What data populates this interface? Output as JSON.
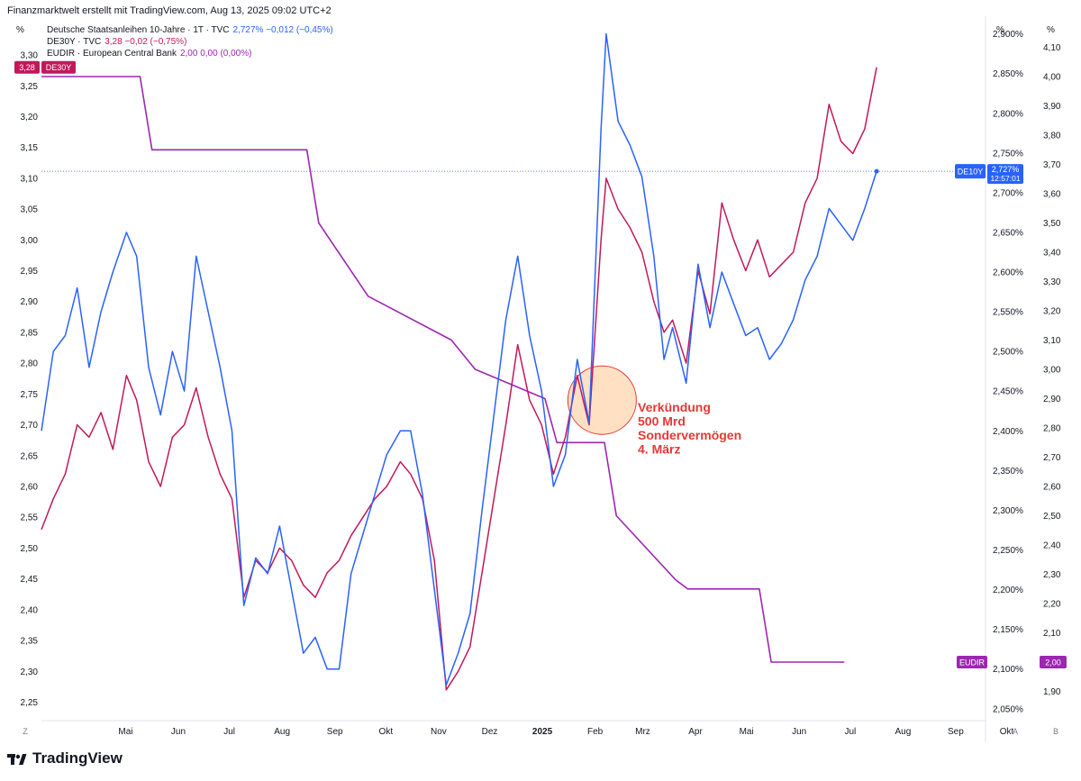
{
  "header": {
    "caption": "Finanzmarktwelt erstellt mit TradingView.com, Aug 13, 2025 09:02 UTC+2"
  },
  "axis_units": {
    "left": "%",
    "right1": "%",
    "right2": "%"
  },
  "legend": [
    {
      "name": "Deutsche Staatsanleihen 10-Jahre · 1T · TVC",
      "values": "2,727%  −0,012 (−0,45%)",
      "color": "#2962ff"
    },
    {
      "name": "DE30Y · TVC",
      "values": "3,28  −0,02 (−0,75%)",
      "color": "#c2185b"
    },
    {
      "name": "EUDIR · European Central Bank",
      "values": "2,00  0,00 (0,00%)",
      "color": "#9c27b0"
    }
  ],
  "price_tags": {
    "de30y": {
      "value": "3,28",
      "label": "DE30Y",
      "color": "#c2185b"
    },
    "de10y": {
      "label": "DE10Y",
      "value": "2,727%",
      "time": "12:57:01",
      "color": "#2962ff"
    },
    "eudir": {
      "label": "EUDIR",
      "value": "2,00",
      "color": "#9c27b0"
    }
  },
  "annotation": {
    "lines": [
      "Verkündung",
      "500 Mrd",
      "Sondervermögen",
      "4. März"
    ],
    "color": "#e53935",
    "circle_fill": "#ffcc99"
  },
  "bottom_letters": {
    "left": "Z",
    "right1": "A",
    "right2": "B"
  },
  "brand": {
    "name": "TradingView"
  },
  "chart_data": {
    "type": "line",
    "x_ticks": [
      "Mai",
      "Jun",
      "Jul",
      "Aug",
      "Sep",
      "Okt",
      "Nov",
      "Dez",
      "2025",
      "Feb",
      "Mrz",
      "Apr",
      "Mai",
      "Jun",
      "Jul",
      "Aug",
      "Sep",
      "Okt"
    ],
    "x_range": [
      "2024-04-08",
      "2025-10-15"
    ],
    "axes": {
      "left": {
        "series": "DE30Y",
        "ylim": [
          2.22,
          3.36
        ],
        "ticks": [
          "2,25",
          "2,30",
          "2,35",
          "2,40",
          "2,45",
          "2,50",
          "2,55",
          "2,60",
          "2,65",
          "2,70",
          "2,75",
          "2,80",
          "2,85",
          "2,90",
          "2,95",
          "3,00",
          "3,05",
          "3,10",
          "3,15",
          "3,20",
          "3,25",
          "3,30"
        ]
      },
      "right1": {
        "series": "DE10Y",
        "ylim": [
          2.035,
          2.92
        ],
        "ticks": [
          "2,050%",
          "2,100%",
          "2,150%",
          "2,200%",
          "2,250%",
          "2,300%",
          "2,350%",
          "2,400%",
          "2,450%",
          "2,500%",
          "2,550%",
          "2,600%",
          "2,650%",
          "2,700%",
          "2,750%",
          "2,800%",
          "2,850%",
          "2,900%"
        ]
      },
      "right2": {
        "series": "EUDIR",
        "ylim": [
          1.8,
          4.2
        ],
        "ticks": [
          "1,90",
          "2,00",
          "2,10",
          "2,20",
          "2,30",
          "2,40",
          "2,50",
          "2,60",
          "2,70",
          "2,80",
          "2,90",
          "3,00",
          "3,10",
          "3,20",
          "3,30",
          "3,40",
          "3,50",
          "3,60",
          "3,70",
          "3,80",
          "3,90",
          "4,00",
          "4,10"
        ]
      }
    },
    "series": [
      {
        "name": "Deutsche Staatsanleihen 10-Jahre",
        "axis": "right1",
        "color": "#2962ff",
        "x": [
          "2024-04-08",
          "2024-04-15",
          "2024-04-22",
          "2024-04-29",
          "2024-05-06",
          "2024-05-13",
          "2024-05-20",
          "2024-05-28",
          "2024-06-03",
          "2024-06-10",
          "2024-06-17",
          "2024-06-24",
          "2024-07-01",
          "2024-07-08",
          "2024-07-15",
          "2024-07-22",
          "2024-07-29",
          "2024-08-05",
          "2024-08-12",
          "2024-08-19",
          "2024-08-26",
          "2024-09-02",
          "2024-09-09",
          "2024-09-16",
          "2024-09-23",
          "2024-09-30",
          "2024-10-07",
          "2024-10-14",
          "2024-10-21",
          "2024-10-28",
          "2024-11-05",
          "2024-11-11",
          "2024-11-18",
          "2024-11-25",
          "2024-12-02",
          "2024-12-09",
          "2024-12-16",
          "2024-12-23",
          "2024-12-30",
          "2025-01-06",
          "2025-01-13",
          "2025-01-20",
          "2025-01-27",
          "2025-02-03",
          "2025-02-10",
          "2025-02-17",
          "2025-02-24",
          "2025-03-03",
          "2025-03-06",
          "2025-03-13",
          "2025-03-20",
          "2025-03-27",
          "2025-04-03",
          "2025-04-09",
          "2025-04-14",
          "2025-04-22",
          "2025-04-29",
          "2025-05-06",
          "2025-05-13",
          "2025-05-20",
          "2025-05-27",
          "2025-06-03",
          "2025-06-10",
          "2025-06-17",
          "2025-06-24",
          "2025-07-01",
          "2025-07-08",
          "2025-07-15",
          "2025-07-22",
          "2025-07-29",
          "2025-08-05",
          "2025-08-12"
        ],
        "y": [
          2.4,
          2.5,
          2.52,
          2.58,
          2.48,
          2.55,
          2.6,
          2.65,
          2.62,
          2.48,
          2.42,
          2.5,
          2.45,
          2.62,
          2.55,
          2.48,
          2.4,
          2.18,
          2.24,
          2.22,
          2.28,
          2.2,
          2.12,
          2.14,
          2.1,
          2.1,
          2.22,
          2.27,
          2.32,
          2.37,
          2.4,
          2.4,
          2.32,
          2.2,
          2.08,
          2.12,
          2.17,
          2.3,
          2.42,
          2.54,
          2.62,
          2.52,
          2.45,
          2.33,
          2.37,
          2.49,
          2.41,
          2.78,
          2.9,
          2.79,
          2.76,
          2.72,
          2.62,
          2.49,
          2.53,
          2.46,
          2.61,
          2.53,
          2.6,
          2.56,
          2.52,
          2.53,
          2.49,
          2.51,
          2.54,
          2.59,
          2.62,
          2.68,
          2.66,
          2.64,
          2.68,
          2.727
        ]
      },
      {
        "name": "DE30Y",
        "axis": "left",
        "color": "#c2185b",
        "x": [
          "2024-04-08",
          "2024-04-15",
          "2024-04-22",
          "2024-04-29",
          "2024-05-06",
          "2024-05-13",
          "2024-05-20",
          "2024-05-28",
          "2024-06-03",
          "2024-06-10",
          "2024-06-17",
          "2024-06-24",
          "2024-07-01",
          "2024-07-08",
          "2024-07-15",
          "2024-07-22",
          "2024-07-29",
          "2024-08-05",
          "2024-08-12",
          "2024-08-19",
          "2024-08-26",
          "2024-09-02",
          "2024-09-09",
          "2024-09-16",
          "2024-09-23",
          "2024-09-30",
          "2024-10-07",
          "2024-10-14",
          "2024-10-21",
          "2024-10-28",
          "2024-11-05",
          "2024-11-11",
          "2024-11-18",
          "2024-11-25",
          "2024-12-02",
          "2024-12-09",
          "2024-12-16",
          "2024-12-23",
          "2024-12-30",
          "2025-01-06",
          "2025-01-13",
          "2025-01-20",
          "2025-01-27",
          "2025-02-03",
          "2025-02-10",
          "2025-02-17",
          "2025-02-24",
          "2025-03-03",
          "2025-03-06",
          "2025-03-13",
          "2025-03-20",
          "2025-03-27",
          "2025-04-03",
          "2025-04-09",
          "2025-04-14",
          "2025-04-22",
          "2025-04-29",
          "2025-05-06",
          "2025-05-13",
          "2025-05-20",
          "2025-05-27",
          "2025-06-03",
          "2025-06-10",
          "2025-06-17",
          "2025-06-24",
          "2025-07-01",
          "2025-07-08",
          "2025-07-15",
          "2025-07-22",
          "2025-07-29",
          "2025-08-05",
          "2025-08-12"
        ],
        "y": [
          2.53,
          2.58,
          2.62,
          2.7,
          2.68,
          2.72,
          2.66,
          2.78,
          2.74,
          2.64,
          2.6,
          2.68,
          2.7,
          2.76,
          2.68,
          2.62,
          2.58,
          2.42,
          2.48,
          2.46,
          2.5,
          2.48,
          2.44,
          2.42,
          2.46,
          2.48,
          2.52,
          2.55,
          2.58,
          2.6,
          2.64,
          2.62,
          2.58,
          2.48,
          2.27,
          2.3,
          2.34,
          2.46,
          2.58,
          2.7,
          2.83,
          2.74,
          2.7,
          2.62,
          2.68,
          2.78,
          2.7,
          3.0,
          3.1,
          3.05,
          3.02,
          2.98,
          2.9,
          2.85,
          2.87,
          2.8,
          2.95,
          2.88,
          3.06,
          3.0,
          2.95,
          3.0,
          2.94,
          2.96,
          2.98,
          3.06,
          3.1,
          3.22,
          3.16,
          3.14,
          3.18,
          3.28
        ]
      },
      {
        "name": "EUDIR",
        "axis": "right2",
        "color": "#9c27b0",
        "x": [
          "2024-04-08",
          "2024-06-05",
          "2024-06-12",
          "2024-09-11",
          "2024-09-18",
          "2024-10-17",
          "2024-12-05",
          "2024-12-12",
          "2024-12-19",
          "2025-01-29",
          "2025-02-05",
          "2025-03-05",
          "2025-03-12",
          "2025-04-16",
          "2025-04-23",
          "2025-06-04",
          "2025-06-11",
          "2025-07-24"
        ],
        "y": [
          4.0,
          4.0,
          3.75,
          3.75,
          3.5,
          3.25,
          3.1,
          3.05,
          3.0,
          2.9,
          2.75,
          2.75,
          2.5,
          2.28,
          2.25,
          2.25,
          2.0,
          2.0
        ]
      }
    ]
  }
}
